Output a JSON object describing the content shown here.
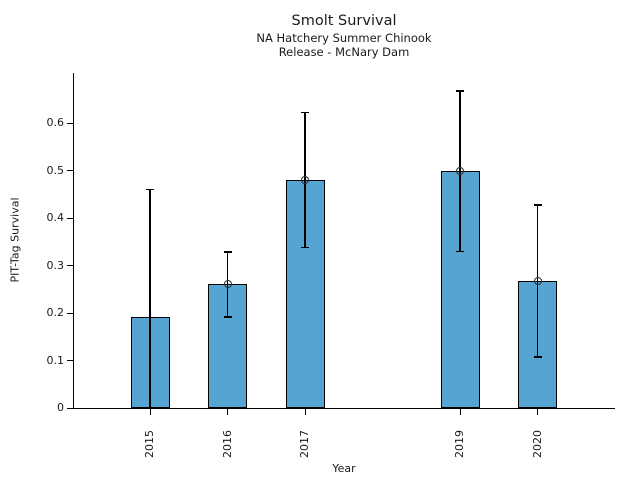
{
  "chart_data": {
    "type": "bar",
    "title": "Smolt Survival",
    "subtitle_lines": [
      "NA Hatchery Summer Chinook",
      "Release - McNary Dam"
    ],
    "xlabel": "Year",
    "ylabel": "PIT-Tag Survival",
    "categories": [
      "2015",
      "2016",
      "2017",
      "2019",
      "2020"
    ],
    "x": [
      2015,
      2016,
      2017,
      2019,
      2020
    ],
    "values": [
      0.192,
      0.261,
      0.48,
      0.5,
      0.268
    ],
    "err_low": [
      0.0,
      0.192,
      0.338,
      0.329,
      0.107
    ],
    "err_high": [
      0.46,
      0.328,
      0.622,
      0.667,
      0.427
    ],
    "markers": [
      false,
      true,
      true,
      true,
      true
    ],
    "xlim": [
      2014,
      2021
    ],
    "ylim": [
      0,
      0.705
    ],
    "yticks": [
      "0",
      "0.1",
      "0.2",
      "0.3",
      "0.4",
      "0.5",
      "0.6"
    ],
    "ytick_values": [
      0,
      0.1,
      0.2,
      0.3,
      0.4,
      0.5,
      0.6
    ],
    "grid": false,
    "legend": false,
    "colors": {
      "bar_fill": "#56a4d2",
      "bar_edge": "#000000",
      "error_bar": "#000000",
      "marker_edge": "#2f2f2f",
      "text": "#1a1a1a",
      "background": "#ffffff"
    }
  }
}
